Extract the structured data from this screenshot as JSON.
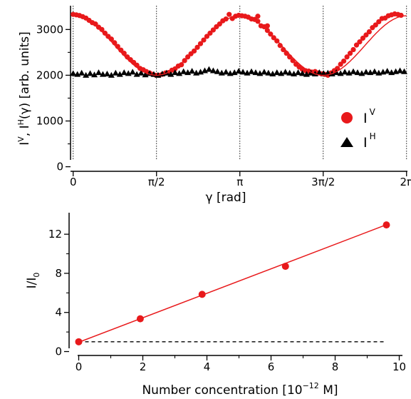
{
  "colors": {
    "red": "#e8191b",
    "black": "#000000"
  },
  "chart_data": [
    {
      "type": "scatter",
      "xlabel": "γ [rad]",
      "ylabel": {
        "base1": "I",
        "sup1": "V",
        "mid": ", I",
        "sup2": "H",
        "tail": "(γ) [arb. units]"
      },
      "xlim": [
        -0.05,
        6.3
      ],
      "ylim": [
        -100,
        3520
      ],
      "x_ticks": [
        {
          "value": 0,
          "label": "0"
        },
        {
          "value": 1.5708,
          "label": "π/2"
        },
        {
          "value": 3.1416,
          "label": "π"
        },
        {
          "value": 4.7124,
          "label": "3π/2"
        },
        {
          "value": 6.2832,
          "label": "2π"
        }
      ],
      "y_ticks": [
        {
          "value": 0,
          "label": "0"
        },
        {
          "value": 1000,
          "label": "1000"
        },
        {
          "value": 2000,
          "label": "2000"
        },
        {
          "value": 3000,
          "label": "3000"
        }
      ],
      "y_minor_ticks": [
        500,
        1500,
        2500
      ],
      "vertical_gridlines": [
        0,
        1.5708,
        3.1416,
        4.7124,
        6.2832
      ],
      "legend": {
        "position": "right-center",
        "entries": [
          {
            "base": "I",
            "sup": "V",
            "marker": "circle"
          },
          {
            "base": "I",
            "sup": "H",
            "marker": "triangle"
          }
        ]
      },
      "series": [
        {
          "marker": "circle",
          "model": {
            "mean": 2650,
            "amplitude": 650,
            "frequency": 2
          },
          "points": [
            [
              0.0,
              3330
            ],
            [
              0.06,
              3320
            ],
            [
              0.12,
              3305
            ],
            [
              0.18,
              3280
            ],
            [
              0.24,
              3250
            ],
            [
              0.3,
              3200
            ],
            [
              0.36,
              3150
            ],
            [
              0.42,
              3120
            ],
            [
              0.48,
              3050
            ],
            [
              0.54,
              3000
            ],
            [
              0.6,
              2920
            ],
            [
              0.66,
              2850
            ],
            [
              0.72,
              2790
            ],
            [
              0.78,
              2710
            ],
            [
              0.84,
              2630
            ],
            [
              0.9,
              2550
            ],
            [
              0.96,
              2480
            ],
            [
              1.02,
              2400
            ],
            [
              1.08,
              2340
            ],
            [
              1.14,
              2280
            ],
            [
              1.2,
              2220
            ],
            [
              1.26,
              2150
            ],
            [
              1.32,
              2120
            ],
            [
              1.38,
              2080
            ],
            [
              1.44,
              2050
            ],
            [
              1.5,
              2020
            ],
            [
              1.56,
              2000
            ],
            [
              1.62,
              2000
            ],
            [
              1.68,
              2020
            ],
            [
              1.74,
              2050
            ],
            [
              1.8,
              2060
            ],
            [
              1.86,
              2110
            ],
            [
              1.92,
              2140
            ],
            [
              1.98,
              2200
            ],
            [
              2.04,
              2230
            ],
            [
              2.1,
              2320
            ],
            [
              2.16,
              2400
            ],
            [
              2.22,
              2470
            ],
            [
              2.28,
              2530
            ],
            [
              2.34,
              2610
            ],
            [
              2.4,
              2690
            ],
            [
              2.46,
              2770
            ],
            [
              2.52,
              2850
            ],
            [
              2.58,
              2920
            ],
            [
              2.64,
              2990
            ],
            [
              2.7,
              3060
            ],
            [
              2.76,
              3120
            ],
            [
              2.82,
              3190
            ],
            [
              2.88,
              3230
            ],
            [
              2.94,
              3330
            ],
            [
              3.0,
              3240
            ],
            [
              3.06,
              3290
            ],
            [
              3.12,
              3310
            ],
            [
              3.18,
              3300
            ],
            [
              3.24,
              3290
            ],
            [
              3.3,
              3270
            ],
            [
              3.36,
              3230
            ],
            [
              3.42,
              3220
            ],
            [
              3.48,
              3180
            ],
            [
              3.54,
              3080
            ],
            [
              3.6,
              3060
            ],
            [
              3.66,
              2980
            ],
            [
              3.72,
              2900
            ],
            [
              3.78,
              2820
            ],
            [
              3.84,
              2750
            ],
            [
              3.9,
              2650
            ],
            [
              3.96,
              2560
            ],
            [
              4.02,
              2480
            ],
            [
              4.08,
              2400
            ],
            [
              4.14,
              2320
            ],
            [
              4.2,
              2240
            ],
            [
              4.26,
              2180
            ],
            [
              4.32,
              2130
            ],
            [
              4.38,
              2100
            ],
            [
              4.44,
              2090
            ],
            [
              4.5,
              2070
            ],
            [
              4.56,
              2080
            ],
            [
              4.62,
              2050
            ],
            [
              4.68,
              2030
            ],
            [
              4.74,
              2020
            ],
            [
              4.8,
              2000
            ],
            [
              4.86,
              2050
            ],
            [
              4.92,
              2100
            ],
            [
              4.98,
              2150
            ],
            [
              5.04,
              2240
            ],
            [
              5.1,
              2310
            ],
            [
              5.16,
              2400
            ],
            [
              5.22,
              2480
            ],
            [
              5.28,
              2560
            ],
            [
              5.34,
              2660
            ],
            [
              5.4,
              2730
            ],
            [
              5.46,
              2810
            ],
            [
              5.52,
              2880
            ],
            [
              5.58,
              2950
            ],
            [
              5.64,
              3040
            ],
            [
              5.7,
              3100
            ],
            [
              5.76,
              3170
            ],
            [
              5.82,
              3240
            ],
            [
              5.88,
              3250
            ],
            [
              5.94,
              3300
            ],
            [
              6.0,
              3320
            ],
            [
              6.06,
              3340
            ],
            [
              6.12,
              3330
            ],
            [
              6.18,
              3310
            ],
            [
              3.48,
              3290
            ],
            [
              3.66,
              3080
            ]
          ]
        },
        {
          "marker": "triangle",
          "points": [
            [
              0.0,
              2040
            ],
            [
              0.08,
              2020
            ],
            [
              0.16,
              2050
            ],
            [
              0.24,
              2000
            ],
            [
              0.32,
              2040
            ],
            [
              0.4,
              2010
            ],
            [
              0.48,
              2060
            ],
            [
              0.56,
              2020
            ],
            [
              0.64,
              2030
            ],
            [
              0.72,
              2000
            ],
            [
              0.8,
              2050
            ],
            [
              0.88,
              2020
            ],
            [
              0.96,
              2060
            ],
            [
              1.04,
              2040
            ],
            [
              1.12,
              2070
            ],
            [
              1.2,
              2020
            ],
            [
              1.28,
              2050
            ],
            [
              1.36,
              2010
            ],
            [
              1.44,
              2040
            ],
            [
              1.52,
              2020
            ],
            [
              1.6,
              2000
            ],
            [
              1.68,
              2030
            ],
            [
              1.76,
              2050
            ],
            [
              1.84,
              2020
            ],
            [
              1.92,
              2060
            ],
            [
              2.0,
              2040
            ],
            [
              2.08,
              2080
            ],
            [
              2.16,
              2060
            ],
            [
              2.24,
              2090
            ],
            [
              2.32,
              2050
            ],
            [
              2.4,
              2070
            ],
            [
              2.48,
              2100
            ],
            [
              2.56,
              2130
            ],
            [
              2.64,
              2100
            ],
            [
              2.72,
              2080
            ],
            [
              2.8,
              2050
            ],
            [
              2.88,
              2070
            ],
            [
              2.96,
              2040
            ],
            [
              3.04,
              2060
            ],
            [
              3.12,
              2090
            ],
            [
              3.2,
              2070
            ],
            [
              3.28,
              2050
            ],
            [
              3.36,
              2080
            ],
            [
              3.44,
              2060
            ],
            [
              3.52,
              2040
            ],
            [
              3.6,
              2070
            ],
            [
              3.68,
              2050
            ],
            [
              3.76,
              2030
            ],
            [
              3.84,
              2060
            ],
            [
              3.92,
              2040
            ],
            [
              4.0,
              2070
            ],
            [
              4.08,
              2050
            ],
            [
              4.16,
              2030
            ],
            [
              4.24,
              2060
            ],
            [
              4.32,
              2040
            ],
            [
              4.4,
              2020
            ],
            [
              4.48,
              2050
            ],
            [
              4.56,
              2030
            ],
            [
              4.64,
              2060
            ],
            [
              4.72,
              2040
            ],
            [
              4.8,
              2050
            ],
            [
              4.88,
              2030
            ],
            [
              4.96,
              2060
            ],
            [
              5.04,
              2040
            ],
            [
              5.12,
              2070
            ],
            [
              5.2,
              2050
            ],
            [
              5.28,
              2080
            ],
            [
              5.36,
              2060
            ],
            [
              5.44,
              2040
            ],
            [
              5.52,
              2070
            ],
            [
              5.6,
              2060
            ],
            [
              5.68,
              2080
            ],
            [
              5.76,
              2050
            ],
            [
              5.84,
              2070
            ],
            [
              5.92,
              2090
            ],
            [
              6.0,
              2060
            ],
            [
              6.08,
              2080
            ],
            [
              6.16,
              2100
            ],
            [
              6.24,
              2080
            ]
          ]
        }
      ]
    },
    {
      "type": "line",
      "xlabel": {
        "base": "Number concentration [10",
        "sup": "−12",
        "tail": " M]"
      },
      "ylabel": {
        "base": "I/I",
        "sub": "0"
      },
      "xlim": [
        -0.3,
        10.1
      ],
      "ylim": [
        -0.4,
        14.2
      ],
      "x_ticks": [
        {
          "value": 0,
          "label": "0"
        },
        {
          "value": 2,
          "label": "2"
        },
        {
          "value": 4,
          "label": "4"
        },
        {
          "value": 6,
          "label": "6"
        },
        {
          "value": 8,
          "label": "8"
        },
        {
          "value": 10,
          "label": "10"
        }
      ],
      "y_ticks": [
        {
          "value": 0,
          "label": "0"
        },
        {
          "value": 4,
          "label": "4"
        },
        {
          "value": 8,
          "label": "8"
        },
        {
          "value": 12,
          "label": "12"
        }
      ],
      "y_minor_ticks": [
        2,
        6,
        10
      ],
      "x_minor_ticks": [
        1,
        3,
        5,
        7,
        9
      ],
      "series": [
        {
          "marker": "circle",
          "points": [
            [
              0.0,
              1.0
            ],
            [
              1.92,
              3.35
            ],
            [
              3.85,
              5.85
            ],
            [
              6.45,
              8.72
            ],
            [
              9.6,
              12.95
            ]
          ],
          "fit": {
            "x": [
              0,
              9.6
            ],
            "y": [
              0.95,
              12.97
            ]
          }
        },
        {
          "style": "dashed",
          "points": [
            [
              0,
              1.0
            ],
            [
              9.6,
              1.0
            ]
          ]
        }
      ]
    }
  ]
}
